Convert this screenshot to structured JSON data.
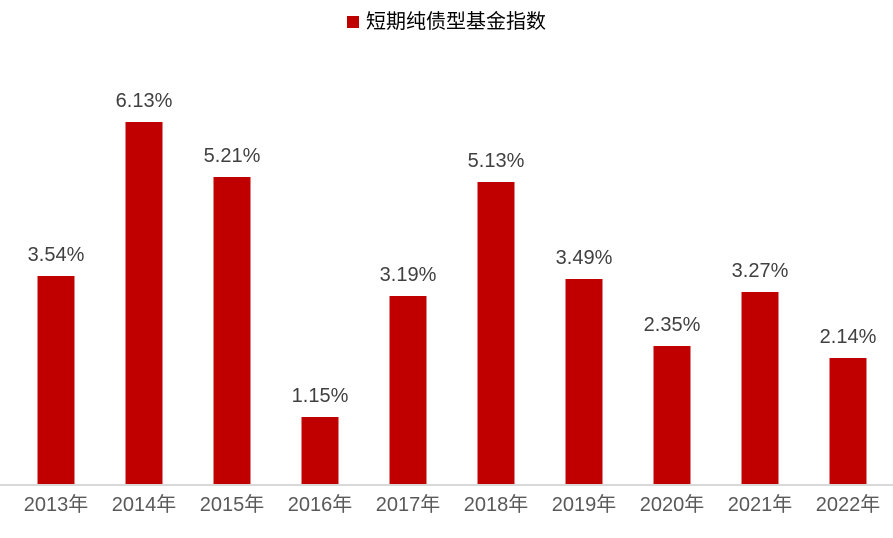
{
  "chart_data": {
    "type": "bar",
    "title": "",
    "legend": {
      "label": "短期纯债型基金指数",
      "marker_color": "#c00000",
      "position": "top-center"
    },
    "categories": [
      "2013年",
      "2014年",
      "2015年",
      "2016年",
      "2017年",
      "2018年",
      "2019年",
      "2020年",
      "2021年",
      "2022年"
    ],
    "series": [
      {
        "name": "短期纯债型基金指数",
        "color": "#c00000",
        "values": [
          3.54,
          6.13,
          5.21,
          1.15,
          3.19,
          5.13,
          3.49,
          2.35,
          3.27,
          2.14
        ]
      }
    ],
    "data_labels": [
      "3.54%",
      "6.13%",
      "5.21%",
      "1.15%",
      "3.19%",
      "5.13%",
      "3.49%",
      "2.35%",
      "3.27%",
      "2.14%"
    ],
    "xlabel": "",
    "ylabel": "",
    "ylim": [
      0,
      7.1
    ],
    "grid": false,
    "y_axis_visible": false,
    "axis_line_color": "#d9d9d9",
    "data_label_color": "#404040",
    "tick_label_color": "#595959"
  }
}
